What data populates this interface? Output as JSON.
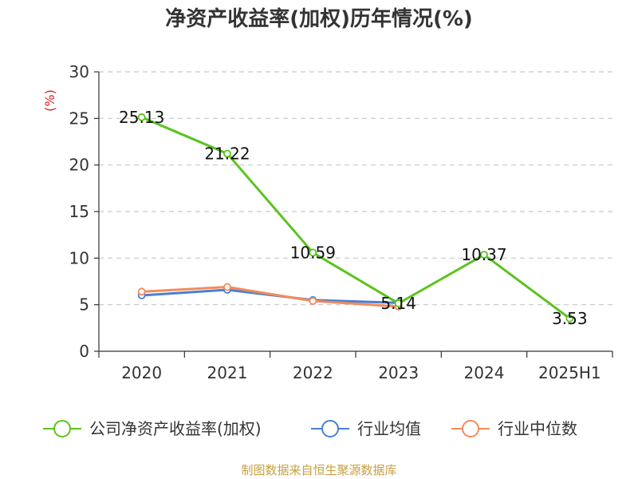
{
  "chart_data": {
    "type": "line",
    "title": "净资产收益率(加权)历年情况(%)",
    "ylabel": "(%)",
    "xlabel": "",
    "categories": [
      "2020",
      "2021",
      "2022",
      "2023",
      "2024",
      "2025H1"
    ],
    "ylim": [
      0,
      30
    ],
    "yticks": [
      0,
      5,
      10,
      15,
      20,
      25,
      30
    ],
    "grid": true,
    "legend_position": "bottom",
    "series": [
      {
        "name": "公司净资产收益率(加权)",
        "color": "#5cc31e",
        "values": [
          25.13,
          21.22,
          10.59,
          5.14,
          10.37,
          3.53
        ],
        "labels": [
          "25.13",
          "21.22",
          "10.59",
          "5.14",
          "10.37",
          "3.53"
        ]
      },
      {
        "name": "行业均值",
        "color": "#4a7fd4",
        "values": [
          6.0,
          6.6,
          5.5,
          5.2,
          null,
          null
        ]
      },
      {
        "name": "行业中位数",
        "color": "#f28c5c",
        "values": [
          6.4,
          6.9,
          5.4,
          4.8,
          null,
          null
        ]
      }
    ]
  },
  "source": "制图数据来自恒生聚源数据库"
}
